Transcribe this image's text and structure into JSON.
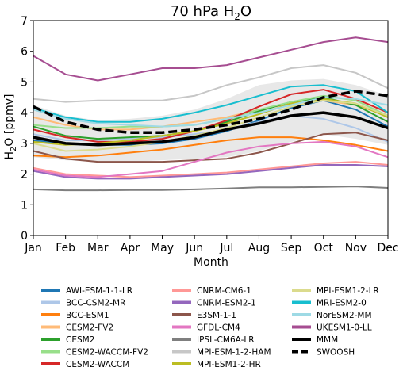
{
  "chart_data": {
    "type": "line",
    "title": "70 hPa H2O",
    "title_main": "70 hPa H",
    "title_sub": "2",
    "title_tail": "O",
    "xlabel": "Month",
    "ylabel": "H2O [ppmv]",
    "ylabel_main": "H",
    "ylabel_sub": "2",
    "ylabel_tail": "O [ppmv]",
    "ylim": [
      0,
      7
    ],
    "yticks": [
      0,
      1,
      2,
      3,
      4,
      5,
      6,
      7
    ],
    "categories": [
      "Jan",
      "Feb",
      "Mar",
      "Apr",
      "May",
      "Jun",
      "Jul",
      "Aug",
      "Sep",
      "Oct",
      "Nov",
      "Dec"
    ],
    "legend_position": "bottom",
    "shaded_band": {
      "color": "#d9d9d9",
      "lower": [
        2.55,
        2.45,
        2.4,
        2.4,
        2.45,
        2.5,
        2.55,
        2.75,
        3.05,
        3.3,
        3.15,
        2.95
      ],
      "upper": [
        4.25,
        3.9,
        3.75,
        3.8,
        3.9,
        4.1,
        4.45,
        4.9,
        5.05,
        5.1,
        4.9,
        4.55
      ]
    },
    "series": [
      {
        "name": "AWI-ESM-1-1-LR",
        "color": "#1f77b4",
        "values": [
          3.1,
          3.0,
          2.95,
          2.95,
          3.0,
          3.15,
          3.4,
          3.75,
          4.15,
          4.4,
          4.1,
          3.55
        ]
      },
      {
        "name": "BCC-CSM2-MR",
        "color": "#aec7e8",
        "values": [
          3.3,
          3.1,
          3.1,
          3.15,
          3.2,
          3.3,
          3.45,
          3.7,
          3.9,
          3.8,
          3.5,
          3.05
        ]
      },
      {
        "name": "BCC-ESM1",
        "color": "#ff7f0e",
        "values": [
          2.6,
          2.55,
          2.6,
          2.7,
          2.8,
          2.95,
          3.1,
          3.2,
          3.2,
          3.1,
          2.95,
          2.75
        ]
      },
      {
        "name": "CESM2-FV2",
        "color": "#ffbb78",
        "values": [
          3.85,
          3.6,
          3.45,
          3.45,
          3.55,
          3.7,
          3.85,
          4.1,
          4.3,
          4.4,
          4.25,
          3.9
        ]
      },
      {
        "name": "CESM2",
        "color": "#2ca02c",
        "values": [
          3.55,
          3.25,
          3.15,
          3.2,
          3.25,
          3.4,
          3.7,
          4.05,
          4.35,
          4.5,
          4.25,
          3.7
        ]
      },
      {
        "name": "CESM2-WACCM-FV2",
        "color": "#98df8a",
        "values": [
          3.6,
          3.5,
          3.5,
          3.55,
          3.55,
          3.6,
          3.8,
          4.1,
          4.35,
          4.55,
          4.4,
          3.9
        ]
      },
      {
        "name": "CESM2-WACCM",
        "color": "#d62728",
        "values": [
          3.45,
          3.2,
          3.05,
          3.05,
          3.15,
          3.4,
          3.75,
          4.2,
          4.6,
          4.75,
          4.45,
          4.0
        ]
      },
      {
        "name": "CNRM-CM6-1",
        "color": "#ff9896",
        "values": [
          2.2,
          2.0,
          1.95,
          1.9,
          1.95,
          2.0,
          2.05,
          2.15,
          2.25,
          2.35,
          2.4,
          2.3
        ]
      },
      {
        "name": "CNRM-ESM2-1",
        "color": "#9467bd",
        "values": [
          2.1,
          1.9,
          1.85,
          1.85,
          1.9,
          1.95,
          2.0,
          2.1,
          2.2,
          2.3,
          2.3,
          2.25
        ]
      },
      {
        "name": "E3SM-1-1",
        "color": "#8c564b",
        "values": [
          2.75,
          2.5,
          2.4,
          2.4,
          2.4,
          2.45,
          2.5,
          2.7,
          3.0,
          3.3,
          3.35,
          3.1
        ]
      },
      {
        "name": "GFDL-CM4",
        "color": "#e377c2",
        "values": [
          2.15,
          1.95,
          1.9,
          2.0,
          2.1,
          2.4,
          2.7,
          2.9,
          3.0,
          3.05,
          2.9,
          2.55
        ]
      },
      {
        "name": "IPSL-CM6A-LR",
        "color": "#7f7f7f",
        "values": [
          1.5,
          1.47,
          1.47,
          1.48,
          1.48,
          1.5,
          1.53,
          1.57,
          1.57,
          1.58,
          1.6,
          1.55
        ]
      },
      {
        "name": "MPI-ESM-1-2-HAM",
        "color": "#c7c7c7",
        "values": [
          4.45,
          4.35,
          4.4,
          4.4,
          4.4,
          4.55,
          4.9,
          5.15,
          5.45,
          5.55,
          5.3,
          4.8
        ]
      },
      {
        "name": "MPI-ESM1-2-HR",
        "color": "#bcbd22",
        "values": [
          3.05,
          2.95,
          3.0,
          3.1,
          3.25,
          3.4,
          3.65,
          3.95,
          4.3,
          4.45,
          4.3,
          3.85
        ]
      },
      {
        "name": "MPI-ESM1-2-LR",
        "color": "#dbdb8d",
        "values": [
          3.0,
          2.75,
          2.8,
          2.9,
          3.05,
          3.25,
          3.5,
          3.85,
          4.2,
          4.4,
          4.3,
          3.9
        ]
      },
      {
        "name": "MRI-ESM2-0",
        "color": "#17becf",
        "values": [
          4.15,
          3.85,
          3.7,
          3.7,
          3.8,
          4.0,
          4.25,
          4.55,
          4.85,
          4.9,
          4.7,
          4.0
        ]
      },
      {
        "name": "NorESM2-MM",
        "color": "#9edae5",
        "values": [
          4.1,
          3.8,
          3.65,
          3.6,
          3.55,
          3.6,
          3.8,
          4.0,
          4.25,
          4.5,
          4.45,
          4.25
        ]
      },
      {
        "name": "UKESM1-0-LL",
        "color": "#a64d91",
        "values": [
          5.85,
          5.25,
          5.05,
          5.25,
          5.45,
          5.45,
          5.55,
          5.8,
          6.05,
          6.3,
          6.45,
          6.3
        ]
      },
      {
        "name": "MMM",
        "color": "#000000",
        "values": [
          3.2,
          3.0,
          2.95,
          3.0,
          3.05,
          3.2,
          3.45,
          3.65,
          3.9,
          4.0,
          3.85,
          3.5
        ]
      },
      {
        "name": "SWOOSH",
        "color": "#000000",
        "dashed": true,
        "values": [
          4.2,
          3.7,
          3.45,
          3.35,
          3.35,
          3.45,
          3.6,
          3.8,
          4.1,
          4.5,
          4.7,
          4.55
        ]
      }
    ]
  }
}
